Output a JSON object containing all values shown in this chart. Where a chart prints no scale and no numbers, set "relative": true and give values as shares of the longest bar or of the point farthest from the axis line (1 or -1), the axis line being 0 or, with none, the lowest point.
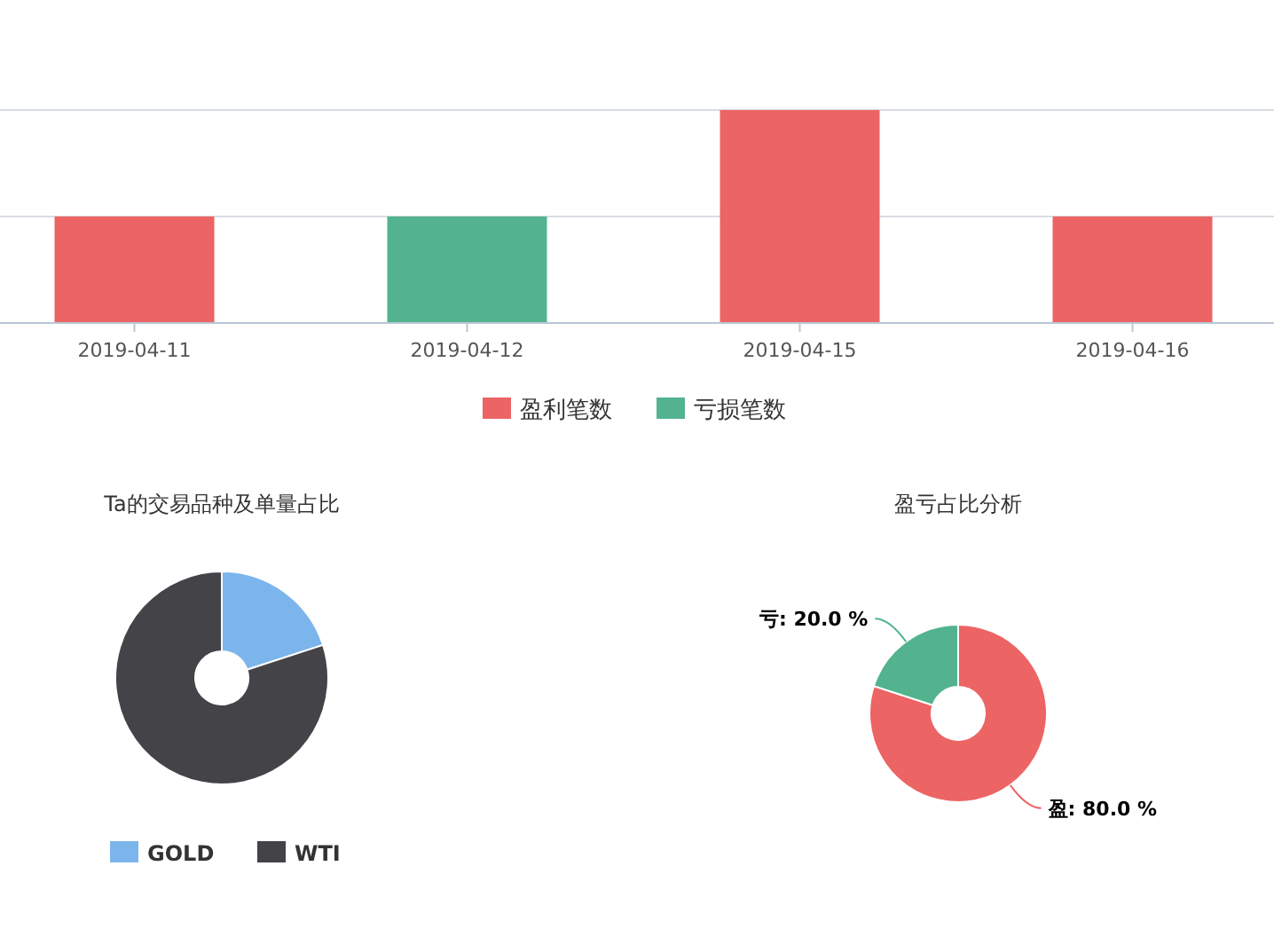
{
  "chart_data": [
    {
      "type": "bar",
      "relative": true,
      "stacked": true,
      "legend": "bottom",
      "ref_lines": [
        {
          "axis": "y",
          "value": 0.5,
          "color": "#d8dde3"
        },
        {
          "axis": "y",
          "value": 1,
          "color": "#d8dde3"
        }
      ],
      "categories": [
        "2019-04-11",
        "2019-04-12",
        "2019-04-15",
        "2019-04-16"
      ],
      "series": [
        {
          "name": "盈利笔数",
          "color": "#ec6464",
          "values": [
            0.5,
            null,
            1,
            0.5
          ]
        },
        {
          "name": "亏损笔数",
          "color": "#52b38e",
          "values": [
            null,
            0.5,
            null,
            null
          ]
        }
      ]
    },
    {
      "type": "donut",
      "title": "Ta的交易品种及单量占比",
      "legend": "bottom",
      "categories": [
        "GOLD",
        "WTI"
      ],
      "values": [
        20,
        80
      ],
      "colors": [
        "#7cb5ec",
        "#434348"
      ]
    },
    {
      "type": "donut",
      "title": "盈亏占比分析",
      "legend": false,
      "categories": [
        null,
        null
      ],
      "values": [
        80,
        20
      ],
      "colors": [
        "#ec6464",
        "#52b38e"
      ],
      "value_labels": [
        "盈: 80.0 %",
        "亏: 20.0 %"
      ]
    }
  ]
}
